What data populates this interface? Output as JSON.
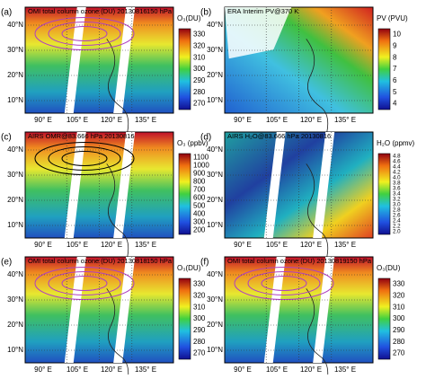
{
  "lat_labels": [
    "40°N",
    "30°N",
    "20°N",
    "10°N"
  ],
  "lon_labels": [
    "90° E",
    "105° E",
    "120° E",
    "135° E"
  ],
  "panels": [
    {
      "label": "(a)",
      "title": "OMI  total column  ozone  (DU) 20130816",
      "note": "150 hPa",
      "colorbar": {
        "label": "O₃(DU)",
        "ticks": [
          "330",
          "320",
          "310",
          "300",
          "290",
          "280",
          "270"
        ]
      }
    },
    {
      "label": "(b)",
      "title": "ERA  Interim PV@370 K",
      "colorbar": {
        "label": "PV (PVU)",
        "ticks": [
          "10",
          "9",
          "8",
          "7",
          "6",
          "5",
          "4"
        ]
      }
    },
    {
      "label": "(c)",
      "title": "AIRS OMR@83.666 hPa 20130816",
      "colorbar": {
        "label": "O₃ (ppbv)",
        "ticks": [
          "1100",
          "1000",
          "900",
          "800",
          "700",
          "600",
          "500",
          "400",
          "300",
          "200"
        ]
      }
    },
    {
      "label": "(d)",
      "title": "AIRS H₂O@83.666 hPa 20130816",
      "colorbar": {
        "label": "H₂O (ppmv)",
        "ticks": [
          "4.8",
          "4.6",
          "4.4",
          "4.2",
          "4.0",
          "3.8",
          "3.6",
          "3.4",
          "3.2",
          "3.0",
          "2.8",
          "2.6",
          "2.4",
          "2.2",
          "2.0"
        ]
      }
    },
    {
      "label": "(e)",
      "title": "OMI  total column  ozone  (DU) 20130818",
      "note": "150 hPa",
      "colorbar": {
        "label": "O₃(DU)",
        "ticks": [
          "330",
          "320",
          "310",
          "300",
          "290",
          "280",
          "270"
        ]
      }
    },
    {
      "label": "(f)",
      "title": "OMI  total column  ozone  (DU) 20130819",
      "note": "150 hPa",
      "colorbar": {
        "label": "O₃(DU)",
        "ticks": [
          "330",
          "320",
          "310",
          "300",
          "290",
          "280",
          "270"
        ]
      }
    }
  ]
}
